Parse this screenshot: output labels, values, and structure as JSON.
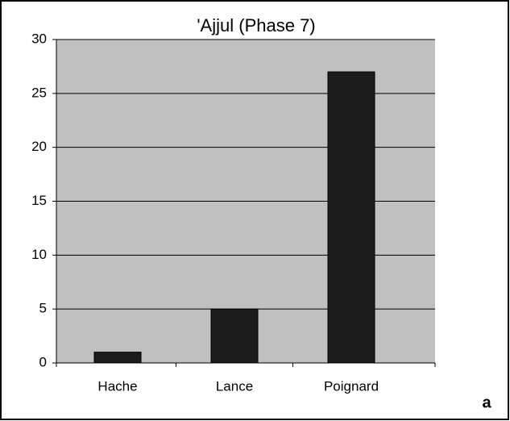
{
  "chart_data": {
    "type": "bar",
    "title": "'Ajjul (Phase 7)",
    "categories": [
      "Hache",
      "Lance",
      "Poignard"
    ],
    "values": [
      1,
      5,
      27
    ],
    "color": "#1c1c1c",
    "ylim": [
      0,
      30
    ],
    "yticks": [
      0,
      5,
      10,
      15,
      20,
      25,
      30
    ],
    "grid": true,
    "annotation": "a"
  }
}
